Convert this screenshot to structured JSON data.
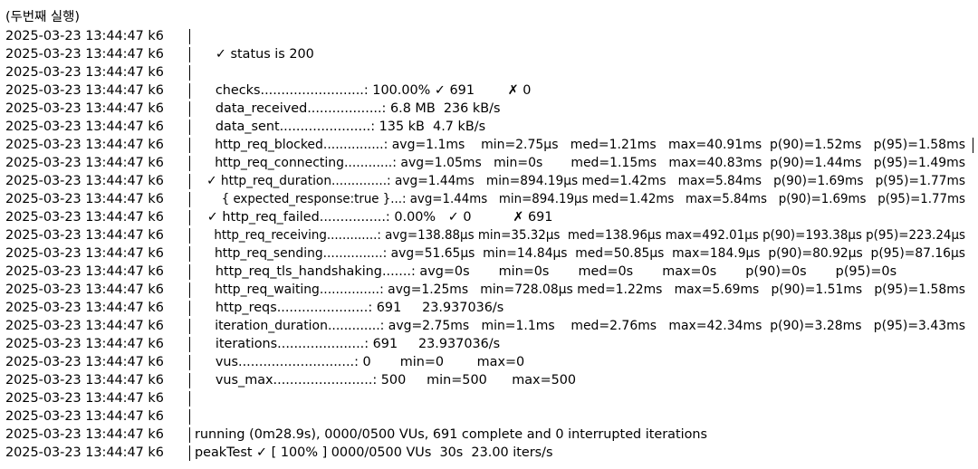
{
  "header": "(두번째 실행)",
  "lines": [
    {
      "ts": "2025-03-23 13:44:47 k6",
      "msg": ""
    },
    {
      "ts": "2025-03-23 13:44:47 k6",
      "msg": "     ✓ status is 200"
    },
    {
      "ts": "2025-03-23 13:44:47 k6",
      "msg": ""
    },
    {
      "ts": "2025-03-23 13:44:47 k6",
      "msg": "     checks.........................: 100.00% ✓ 691        ✗ 0"
    },
    {
      "ts": "2025-03-23 13:44:47 k6",
      "msg": "     data_received..................: 6.8 MB  236 kB/s"
    },
    {
      "ts": "2025-03-23 13:44:47 k6",
      "msg": "     data_sent......................: 135 kB  4.7 kB/s"
    },
    {
      "ts": "2025-03-23 13:44:47 k6",
      "msg": "     http_req_blocked...............: avg=1.1ms    min=2.75µs   med=1.21ms   max=40.91ms  p(90)=1.52ms   p(95)=1.58ms",
      "trail": true
    },
    {
      "ts": "2025-03-23 13:44:47 k6",
      "msg": "     http_req_connecting............: avg=1.05ms   min=0s       med=1.15ms   max=40.83ms  p(90)=1.44ms   p(95)=1.49ms"
    },
    {
      "ts": "2025-03-23 13:44:47 k6",
      "msg": "   ✓ http_req_duration..............: avg=1.44ms   min=894.19µs med=1.42ms   max=5.84ms   p(90)=1.69ms   p(95)=1.77ms"
    },
    {
      "ts": "2025-03-23 13:44:47 k6",
      "msg": "       { expected_response:true }...: avg=1.44ms   min=894.19µs med=1.42ms   max=5.84ms   p(90)=1.69ms   p(95)=1.77ms"
    },
    {
      "ts": "2025-03-23 13:44:47 k6",
      "msg": "   ✓ http_req_failed................: 0.00%   ✓ 0          ✗ 691"
    },
    {
      "ts": "2025-03-23 13:44:47 k6",
      "msg": "     http_req_receiving.............: avg=138.88µs min=35.32µs  med=138.96µs max=492.01µs p(90)=193.38µs p(95)=223.24µs"
    },
    {
      "ts": "2025-03-23 13:44:47 k6",
      "msg": "     http_req_sending...............: avg=51.65µs  min=14.84µs  med=50.85µs  max=184.9µs  p(90)=80.92µs  p(95)=87.16µs"
    },
    {
      "ts": "2025-03-23 13:44:47 k6",
      "msg": "     http_req_tls_handshaking.......: avg=0s       min=0s       med=0s       max=0s       p(90)=0s       p(95)=0s"
    },
    {
      "ts": "2025-03-23 13:44:47 k6",
      "msg": "     http_req_waiting...............: avg=1.25ms   min=728.08µs med=1.22ms   max=5.69ms   p(90)=1.51ms   p(95)=1.58ms"
    },
    {
      "ts": "2025-03-23 13:44:47 k6",
      "msg": "     http_reqs......................: 691     23.937036/s"
    },
    {
      "ts": "2025-03-23 13:44:47 k6",
      "msg": "     iteration_duration.............: avg=2.75ms   min=1.1ms    med=2.76ms   max=42.34ms  p(90)=3.28ms   p(95)=3.43ms"
    },
    {
      "ts": "2025-03-23 13:44:47 k6",
      "msg": "     iterations.....................: 691     23.937036/s"
    },
    {
      "ts": "2025-03-23 13:44:47 k6",
      "msg": "     vus............................: 0       min=0        max=0"
    },
    {
      "ts": "2025-03-23 13:44:47 k6",
      "msg": "     vus_max........................: 500     min=500      max=500"
    },
    {
      "ts": "2025-03-23 13:44:47 k6",
      "msg": ""
    },
    {
      "ts": "2025-03-23 13:44:47 k6",
      "msg": ""
    },
    {
      "ts": "2025-03-23 13:44:47 k6",
      "msg": "running (0m28.9s), 0000/0500 VUs, 691 complete and 0 interrupted iterations"
    },
    {
      "ts": "2025-03-23 13:44:47 k6",
      "msg": "peakTest ✓ [ 100% ] 0000/0500 VUs  30s  23.00 iters/s"
    }
  ]
}
